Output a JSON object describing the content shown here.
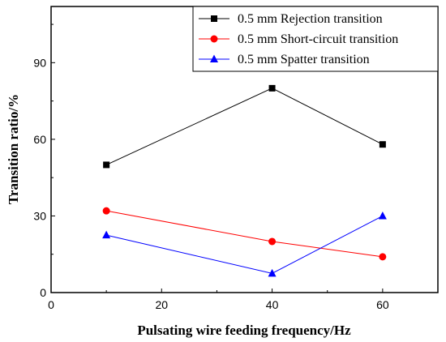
{
  "chart_data": {
    "type": "line",
    "title": "",
    "xlabel": "Pulsating wire feeding frequency/Hz",
    "ylabel": "Transition ratio/%",
    "xlim": [
      0,
      70
    ],
    "ylim": [
      0,
      112
    ],
    "xticks": [
      0,
      20,
      40,
      60
    ],
    "yticks": [
      0,
      30,
      60,
      90
    ],
    "grid": false,
    "legend_position": "top-right",
    "series": [
      {
        "name": "0.5 mm Rejection transition",
        "color": "#000000",
        "marker": "square",
        "x": [
          10,
          40,
          60
        ],
        "y": [
          50,
          80,
          58
        ]
      },
      {
        "name": "0.5 mm Short-circuit transition",
        "color": "#ff0000",
        "marker": "circle",
        "x": [
          10,
          40,
          60
        ],
        "y": [
          32,
          20,
          14
        ]
      },
      {
        "name": "0.5 mm Spatter transition",
        "color": "#0000ff",
        "marker": "triangle",
        "x": [
          10,
          40,
          60
        ],
        "y": [
          22.5,
          7.5,
          30
        ]
      }
    ]
  }
}
